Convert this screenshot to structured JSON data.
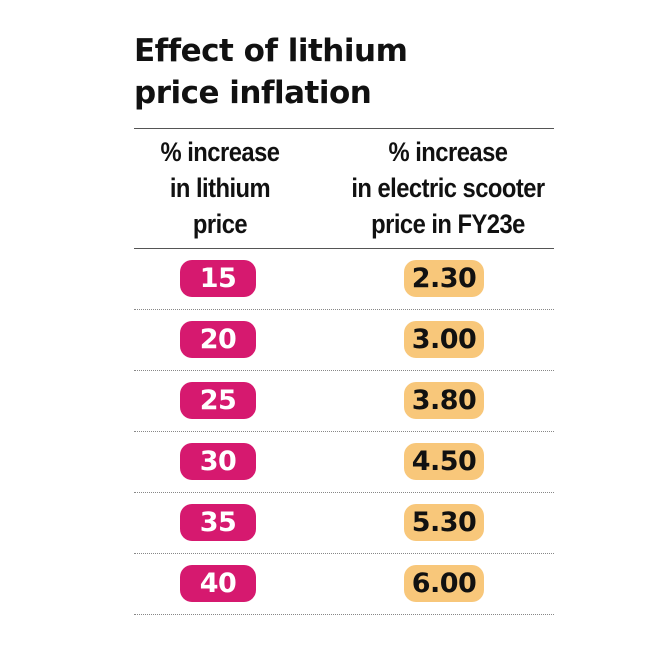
{
  "title_lines": [
    "Effect of lithium",
    "price inflation"
  ],
  "colors": {
    "lithium_pill": "#d6196f",
    "scooter_pill": "#f8c77a"
  },
  "chart_data": {
    "type": "table",
    "title": "Effect of lithium price inflation",
    "columns": [
      {
        "header_lines": [
          "% increase",
          "in lithium",
          "price"
        ],
        "values": [
          "15",
          "20",
          "25",
          "30",
          "35",
          "40"
        ]
      },
      {
        "header_lines": [
          "% increase",
          "in electric scooter",
          "price in FY23e"
        ],
        "values": [
          "2.30",
          "3.00",
          "3.80",
          "4.50",
          "5.30",
          "6.00"
        ]
      }
    ]
  }
}
